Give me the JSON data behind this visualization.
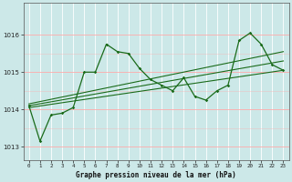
{
  "title": "Graphe pression niveau de la mer (hPa)",
  "background_color": "#cce8e8",
  "grid_color_v": "#ffffff",
  "grid_color_h": "#ffaaaa",
  "line_color": "#1a6b1a",
  "ylim": [
    1012.65,
    1016.85
  ],
  "yticks": [
    1013,
    1014,
    1015,
    1016
  ],
  "xlim": [
    -0.5,
    23.5
  ],
  "xticks": [
    0,
    1,
    2,
    3,
    4,
    5,
    6,
    7,
    8,
    9,
    10,
    11,
    12,
    13,
    14,
    15,
    16,
    17,
    18,
    19,
    20,
    21,
    22,
    23
  ],
  "main_line": [
    1014.1,
    1013.15,
    1013.85,
    1013.9,
    1014.05,
    1015.0,
    1015.0,
    1015.75,
    1015.55,
    1015.5,
    1015.1,
    1014.8,
    1014.65,
    1014.5,
    1014.85,
    1014.35,
    1014.25,
    1014.5,
    1014.65,
    1015.85,
    1016.05,
    1015.75,
    1015.2,
    1015.05
  ],
  "trend1_x": [
    0,
    23
  ],
  "trend1_y": [
    1014.05,
    1015.05
  ],
  "trend2_x": [
    0,
    23
  ],
  "trend2_y": [
    1014.1,
    1015.3
  ],
  "trend3_x": [
    0,
    23
  ],
  "trend3_y": [
    1014.15,
    1015.55
  ],
  "figsize": [
    3.2,
    2.0
  ],
  "dpi": 100
}
